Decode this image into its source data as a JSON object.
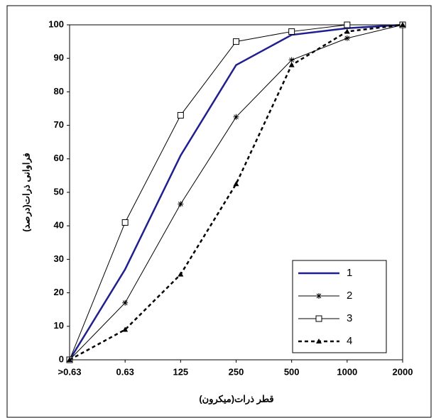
{
  "chart_data": {
    "type": "line",
    "x_label": "قطر ذرات(میکرون)",
    "y_label": "فراوانی ذرات(درصد)",
    "categories": [
      ">0.63",
      "0.63",
      "125",
      "250",
      "500",
      "1000",
      "2000"
    ],
    "ylim": [
      0,
      100
    ],
    "yticks": [
      0,
      10,
      20,
      30,
      40,
      50,
      60,
      70,
      80,
      90,
      100
    ],
    "legend": "lower-right",
    "series": [
      {
        "name": "1",
        "color": "#1f1f8f",
        "marker": null,
        "dash": false,
        "width": 2.5,
        "values": [
          0,
          27,
          61,
          88,
          97,
          99,
          100
        ]
      },
      {
        "name": "2",
        "color": "#000000",
        "marker": "star",
        "dash": false,
        "width": 1,
        "values": [
          0,
          17,
          46.5,
          72.5,
          89.5,
          96,
          100
        ]
      },
      {
        "name": "3",
        "color": "#000000",
        "marker": "square",
        "dash": false,
        "width": 1,
        "values": [
          0,
          41,
          73,
          95,
          98,
          100,
          100
        ]
      },
      {
        "name": "4",
        "color": "#000000",
        "marker": "triangle",
        "dash": true,
        "width": 2.5,
        "values": [
          0,
          9,
          25.5,
          52.5,
          88,
          98,
          100
        ]
      }
    ]
  }
}
